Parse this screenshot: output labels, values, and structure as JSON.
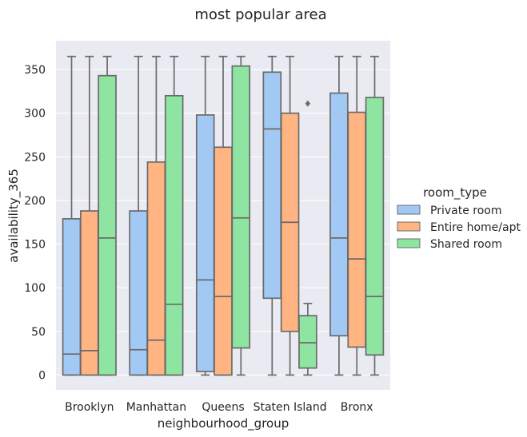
{
  "chart_data": {
    "type": "box",
    "title": "most popular area",
    "xlabel": "neighbourhood_group",
    "ylabel": "availability_365",
    "categories": [
      "Brooklyn",
      "Manhattan",
      "Queens",
      "Staten Island",
      "Bronx"
    ],
    "ylim": [
      -17,
      383
    ],
    "yticks": [
      0,
      50,
      100,
      150,
      200,
      250,
      300,
      350
    ],
    "grid": true,
    "legend": {
      "title": "room_type",
      "placement": "right"
    },
    "colors": {
      "background": "#eaeaf2",
      "grid": "#ffffff",
      "line": "#6b6b6b",
      "Private room": "#a1c9f4",
      "Entire home/apt": "#ffb482",
      "Shared room": "#8de5a1"
    },
    "series": [
      {
        "name": "Private room",
        "boxes": [
          {
            "whislo": 0,
            "q1": 0,
            "med": 24,
            "q3": 179,
            "whishi": 365,
            "fliers": []
          },
          {
            "whislo": 0,
            "q1": 0,
            "med": 29,
            "q3": 188,
            "whishi": 365,
            "fliers": []
          },
          {
            "whislo": 0,
            "q1": 4,
            "med": 109,
            "q3": 298,
            "whishi": 365,
            "fliers": []
          },
          {
            "whislo": 0,
            "q1": 88,
            "med": 282,
            "q3": 347,
            "whishi": 365,
            "fliers": []
          },
          {
            "whislo": 0,
            "q1": 45,
            "med": 157,
            "q3": 323,
            "whishi": 365,
            "fliers": []
          }
        ]
      },
      {
        "name": "Entire home/apt",
        "boxes": [
          {
            "whislo": 0,
            "q1": 0,
            "med": 28,
            "q3": 188,
            "whishi": 365,
            "fliers": []
          },
          {
            "whislo": 0,
            "q1": 0,
            "med": 40,
            "q3": 244,
            "whishi": 365,
            "fliers": []
          },
          {
            "whislo": 0,
            "q1": 0,
            "med": 90,
            "q3": 261,
            "whishi": 365,
            "fliers": []
          },
          {
            "whislo": 0,
            "q1": 50,
            "med": 175,
            "q3": 300,
            "whishi": 365,
            "fliers": []
          },
          {
            "whislo": 0,
            "q1": 32,
            "med": 133,
            "q3": 301,
            "whishi": 365,
            "fliers": []
          }
        ]
      },
      {
        "name": "Shared room",
        "boxes": [
          {
            "whislo": 0,
            "q1": 0,
            "med": 157,
            "q3": 343,
            "whishi": 365,
            "fliers": []
          },
          {
            "whislo": 0,
            "q1": 0,
            "med": 81,
            "q3": 320,
            "whishi": 365,
            "fliers": []
          },
          {
            "whislo": 0,
            "q1": 31,
            "med": 180,
            "q3": 354,
            "whishi": 365,
            "fliers": []
          },
          {
            "whislo": 0,
            "q1": 8,
            "med": 37,
            "q3": 68,
            "whishi": 82,
            "fliers": [
              311
            ]
          },
          {
            "whislo": 0,
            "q1": 23,
            "med": 90,
            "q3": 318,
            "whishi": 365,
            "fliers": []
          }
        ]
      }
    ]
  }
}
